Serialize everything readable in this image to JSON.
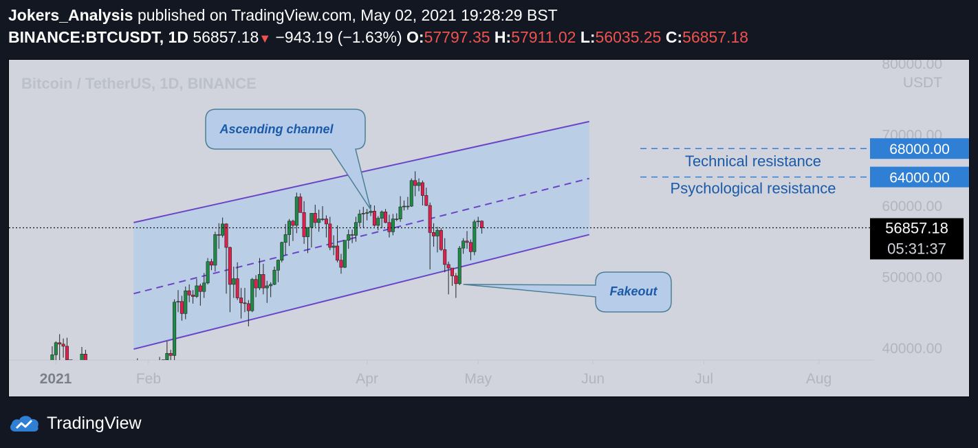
{
  "header": {
    "author": "Jokers_Analysis",
    "published": "published on TradingView.com, May 02, 2021 19:28:29 BST",
    "symbol": "BINANCE:BTCUSDT, 1D",
    "last": "56857.18",
    "change": "−943.19 (−1.63%)",
    "o_label": "O:",
    "o_value": "57797.35",
    "h_label": "H:",
    "h_value": "57911.02",
    "l_label": "L:",
    "l_value": "56035.25",
    "c_label": "C:",
    "c_value": "56857.18"
  },
  "footer": {
    "brand": "TradingView",
    "logo_icon": "tradingview-cloud-icon"
  },
  "colors": {
    "up": "#1e8a45",
    "down": "#e0204c",
    "channel_line": "#6a44c8",
    "channel_fill": "#b6cce8",
    "label_blue": "#1b5aa8",
    "price_tag": "#2f7fd4",
    "background": "#d1d4dc",
    "page": "#131722"
  },
  "chart_data": {
    "type": "candlestick",
    "watermark": "Bitcoin / TetherUS, 1D, BINANCE",
    "y_unit": "USDT",
    "y_ticks": [
      "80000.00",
      "70000.00",
      "60000.00",
      "50000.00",
      "40000.00"
    ],
    "y_range": [
      38000,
      80000
    ],
    "x_ticks": [
      "2021",
      "Feb",
      "Apr",
      "May",
      "Jun",
      "Jul",
      "Aug"
    ],
    "current_price": "56857.18",
    "countdown": "05:31:37",
    "resistance_levels": [
      {
        "price": 68000,
        "tag": "68000.00",
        "label": "Technical resistance"
      },
      {
        "price": 64000,
        "tag": "64000.00",
        "label": "Psychological resistance"
      }
    ],
    "channel": {
      "start_date": "2021-01-28",
      "end_date": "2021-05-31",
      "upper": [
        57600,
        71800
      ],
      "middle": [
        47600,
        63800
      ],
      "lower": [
        39800,
        55900
      ]
    },
    "annotations": [
      {
        "text": "Ascending channel",
        "anchor_date": "2021-04-02",
        "anchor_price": 59400
      },
      {
        "text": "Fakeout",
        "anchor_date": "2021-04-27",
        "anchor_price": 48900
      }
    ],
    "series": [
      {
        "date": "2021-01-06",
        "open": 34000,
        "high": 40200,
        "low": 33000,
        "close": 39000
      },
      {
        "date": "2021-01-07",
        "open": 39000,
        "high": 40900,
        "low": 36000,
        "close": 40700
      },
      {
        "date": "2021-01-08",
        "open": 40700,
        "high": 41900,
        "low": 36300,
        "close": 40500
      },
      {
        "date": "2021-01-09",
        "open": 40500,
        "high": 41300,
        "low": 38600,
        "close": 40200
      },
      {
        "date": "2021-01-10",
        "open": 40200,
        "high": 41400,
        "low": 35400,
        "close": 38300
      },
      {
        "date": "2021-01-11",
        "open": 38300,
        "high": 38300,
        "low": 30400,
        "close": 35500
      },
      {
        "date": "2021-01-12",
        "open": 35500,
        "high": 36600,
        "low": 32500,
        "close": 34000
      },
      {
        "date": "2021-01-13",
        "open": 34000,
        "high": 37600,
        "low": 32400,
        "close": 37400
      },
      {
        "date": "2021-01-14",
        "open": 37400,
        "high": 40100,
        "low": 36700,
        "close": 39100
      },
      {
        "date": "2021-01-15",
        "open": 39100,
        "high": 39700,
        "low": 34400,
        "close": 36800
      },
      {
        "date": "2021-01-16",
        "open": 36800,
        "high": 37900,
        "low": 35400,
        "close": 36000
      },
      {
        "date": "2021-01-17",
        "open": 36000,
        "high": 36800,
        "low": 33800,
        "close": 35800
      },
      {
        "date": "2021-01-18",
        "open": 35800,
        "high": 37300,
        "low": 34800,
        "close": 36600
      },
      {
        "date": "2021-01-19",
        "open": 36600,
        "high": 37800,
        "low": 35800,
        "close": 35900
      },
      {
        "date": "2021-01-20",
        "open": 35900,
        "high": 36400,
        "low": 33400,
        "close": 35500
      },
      {
        "date": "2021-01-21",
        "open": 35500,
        "high": 35500,
        "low": 30000,
        "close": 30800
      },
      {
        "date": "2021-01-22",
        "open": 30800,
        "high": 33800,
        "low": 28800,
        "close": 33000
      },
      {
        "date": "2021-01-23",
        "open": 33000,
        "high": 33400,
        "low": 31400,
        "close": 32100
      },
      {
        "date": "2021-01-24",
        "open": 32100,
        "high": 32900,
        "low": 30900,
        "close": 32300
      },
      {
        "date": "2021-01-25",
        "open": 32300,
        "high": 34900,
        "low": 31900,
        "close": 32300
      },
      {
        "date": "2021-01-26",
        "open": 32300,
        "high": 32900,
        "low": 30800,
        "close": 32500
      },
      {
        "date": "2021-01-27",
        "open": 32500,
        "high": 32600,
        "low": 29200,
        "close": 30400
      },
      {
        "date": "2021-01-28",
        "open": 30400,
        "high": 34000,
        "low": 29900,
        "close": 33400
      },
      {
        "date": "2021-01-29",
        "open": 33400,
        "high": 38500,
        "low": 31900,
        "close": 34300
      },
      {
        "date": "2021-01-30",
        "open": 34300,
        "high": 34900,
        "low": 32900,
        "close": 34300
      },
      {
        "date": "2021-01-31",
        "open": 34300,
        "high": 34400,
        "low": 32100,
        "close": 33100
      },
      {
        "date": "2021-02-01",
        "open": 33100,
        "high": 34700,
        "low": 32300,
        "close": 33500
      },
      {
        "date": "2021-02-02",
        "open": 33500,
        "high": 36000,
        "low": 33400,
        "close": 35500
      },
      {
        "date": "2021-02-03",
        "open": 35500,
        "high": 37700,
        "low": 35400,
        "close": 37600
      },
      {
        "date": "2021-02-04",
        "open": 37600,
        "high": 38700,
        "low": 36200,
        "close": 36900
      },
      {
        "date": "2021-02-05",
        "open": 36900,
        "high": 38300,
        "low": 36600,
        "close": 38300
      },
      {
        "date": "2021-02-06",
        "open": 38300,
        "high": 40900,
        "low": 38200,
        "close": 39200
      },
      {
        "date": "2021-02-07",
        "open": 39200,
        "high": 39700,
        "low": 37400,
        "close": 38900
      },
      {
        "date": "2021-02-08",
        "open": 38900,
        "high": 46800,
        "low": 38000,
        "close": 46400
      },
      {
        "date": "2021-02-09",
        "open": 46400,
        "high": 48100,
        "low": 45000,
        "close": 46500
      },
      {
        "date": "2021-02-10",
        "open": 46500,
        "high": 47300,
        "low": 43800,
        "close": 44800
      },
      {
        "date": "2021-02-11",
        "open": 44800,
        "high": 48600,
        "low": 44000,
        "close": 48000
      },
      {
        "date": "2021-02-12",
        "open": 48000,
        "high": 48900,
        "low": 46400,
        "close": 47400
      },
      {
        "date": "2021-02-13",
        "open": 47400,
        "high": 48100,
        "low": 46200,
        "close": 47200
      },
      {
        "date": "2021-02-14",
        "open": 47200,
        "high": 49700,
        "low": 47000,
        "close": 48700
      },
      {
        "date": "2021-02-15",
        "open": 48700,
        "high": 49000,
        "low": 45900,
        "close": 47900
      },
      {
        "date": "2021-02-16",
        "open": 47900,
        "high": 50500,
        "low": 47000,
        "close": 49100
      },
      {
        "date": "2021-02-17",
        "open": 49100,
        "high": 52600,
        "low": 48900,
        "close": 52100
      },
      {
        "date": "2021-02-18",
        "open": 52100,
        "high": 52500,
        "low": 50900,
        "close": 51600
      },
      {
        "date": "2021-02-19",
        "open": 51600,
        "high": 56300,
        "low": 50700,
        "close": 55900
      },
      {
        "date": "2021-02-20",
        "open": 55900,
        "high": 57500,
        "low": 53900,
        "close": 55800
      },
      {
        "date": "2021-02-21",
        "open": 55800,
        "high": 58300,
        "low": 55500,
        "close": 57400
      },
      {
        "date": "2021-02-22",
        "open": 57400,
        "high": 57500,
        "low": 47600,
        "close": 54100
      },
      {
        "date": "2021-02-23",
        "open": 54100,
        "high": 54200,
        "low": 45000,
        "close": 48900
      },
      {
        "date": "2021-02-24",
        "open": 48900,
        "high": 51400,
        "low": 47000,
        "close": 49700
      },
      {
        "date": "2021-02-25",
        "open": 49700,
        "high": 52000,
        "low": 46700,
        "close": 47000
      },
      {
        "date": "2021-02-26",
        "open": 47000,
        "high": 48400,
        "low": 44100,
        "close": 46300
      },
      {
        "date": "2021-02-27",
        "open": 46300,
        "high": 48400,
        "low": 45000,
        "close": 46200
      },
      {
        "date": "2021-02-28",
        "open": 46200,
        "high": 46700,
        "low": 43000,
        "close": 45200
      },
      {
        "date": "2021-03-01",
        "open": 45200,
        "high": 49800,
        "low": 45000,
        "close": 49600
      },
      {
        "date": "2021-03-02",
        "open": 49600,
        "high": 50200,
        "low": 47100,
        "close": 48400
      },
      {
        "date": "2021-03-03",
        "open": 48400,
        "high": 52600,
        "low": 48100,
        "close": 50300
      },
      {
        "date": "2021-03-04",
        "open": 50300,
        "high": 51800,
        "low": 47500,
        "close": 48400
      },
      {
        "date": "2021-03-05",
        "open": 48400,
        "high": 49400,
        "low": 46300,
        "close": 48700
      },
      {
        "date": "2021-03-06",
        "open": 48700,
        "high": 49200,
        "low": 47100,
        "close": 48900
      },
      {
        "date": "2021-03-07",
        "open": 48900,
        "high": 51400,
        "low": 48800,
        "close": 50900
      },
      {
        "date": "2021-03-08",
        "open": 50900,
        "high": 52400,
        "low": 49200,
        "close": 52300
      },
      {
        "date": "2021-03-09",
        "open": 52300,
        "high": 54900,
        "low": 52000,
        "close": 54800
      },
      {
        "date": "2021-03-10",
        "open": 54800,
        "high": 57400,
        "low": 53000,
        "close": 55900
      },
      {
        "date": "2021-03-11",
        "open": 55900,
        "high": 58100,
        "low": 54300,
        "close": 57800
      },
      {
        "date": "2021-03-12",
        "open": 57800,
        "high": 58000,
        "low": 55000,
        "close": 57200
      },
      {
        "date": "2021-03-13",
        "open": 57200,
        "high": 61800,
        "low": 56100,
        "close": 61200
      },
      {
        "date": "2021-03-14",
        "open": 61200,
        "high": 61700,
        "low": 59100,
        "close": 59000
      },
      {
        "date": "2021-03-15",
        "open": 59000,
        "high": 60600,
        "low": 54600,
        "close": 55600
      },
      {
        "date": "2021-03-16",
        "open": 55600,
        "high": 56900,
        "low": 53300,
        "close": 56900
      },
      {
        "date": "2021-03-17",
        "open": 56900,
        "high": 58900,
        "low": 54100,
        "close": 58900
      },
      {
        "date": "2021-03-18",
        "open": 58900,
        "high": 60100,
        "low": 57000,
        "close": 57600
      },
      {
        "date": "2021-03-19",
        "open": 57600,
        "high": 59400,
        "low": 56300,
        "close": 58100
      },
      {
        "date": "2021-03-20",
        "open": 58100,
        "high": 59900,
        "low": 57800,
        "close": 58100
      },
      {
        "date": "2021-03-21",
        "open": 58100,
        "high": 58600,
        "low": 55500,
        "close": 57400
      },
      {
        "date": "2021-03-22",
        "open": 57400,
        "high": 58400,
        "low": 53700,
        "close": 54100
      },
      {
        "date": "2021-03-23",
        "open": 54100,
        "high": 55800,
        "low": 53000,
        "close": 54300
      },
      {
        "date": "2021-03-24",
        "open": 54300,
        "high": 57200,
        "low": 52000,
        "close": 52300
      },
      {
        "date": "2021-03-25",
        "open": 52300,
        "high": 53200,
        "low": 50400,
        "close": 51300
      },
      {
        "date": "2021-03-26",
        "open": 51300,
        "high": 55100,
        "low": 51200,
        "close": 55100
      },
      {
        "date": "2021-03-27",
        "open": 55100,
        "high": 56600,
        "low": 53900,
        "close": 55900
      },
      {
        "date": "2021-03-28",
        "open": 55900,
        "high": 56600,
        "low": 54700,
        "close": 55800
      },
      {
        "date": "2021-03-29",
        "open": 55800,
        "high": 58400,
        "low": 54900,
        "close": 57600
      },
      {
        "date": "2021-03-30",
        "open": 57600,
        "high": 59400,
        "low": 57000,
        "close": 58800
      },
      {
        "date": "2021-03-31",
        "open": 58800,
        "high": 59800,
        "low": 56900,
        "close": 58900
      },
      {
        "date": "2021-04-01",
        "open": 58900,
        "high": 59500,
        "low": 57900,
        "close": 59000
      },
      {
        "date": "2021-04-02",
        "open": 59000,
        "high": 60100,
        "low": 58500,
        "close": 59200
      },
      {
        "date": "2021-04-03",
        "open": 59200,
        "high": 60000,
        "low": 57000,
        "close": 57200
      },
      {
        "date": "2021-04-04",
        "open": 57200,
        "high": 58500,
        "low": 56500,
        "close": 58200
      },
      {
        "date": "2021-04-05",
        "open": 58200,
        "high": 59300,
        "low": 56800,
        "close": 59100
      },
      {
        "date": "2021-04-06",
        "open": 59100,
        "high": 59500,
        "low": 57500,
        "close": 57600
      },
      {
        "date": "2021-04-07",
        "open": 57600,
        "high": 58700,
        "low": 55500,
        "close": 56300
      },
      {
        "date": "2021-04-08",
        "open": 56300,
        "high": 58800,
        "low": 55800,
        "close": 58100
      },
      {
        "date": "2021-04-09",
        "open": 58100,
        "high": 58900,
        "low": 57800,
        "close": 58100
      },
      {
        "date": "2021-04-10",
        "open": 58100,
        "high": 61300,
        "low": 57700,
        "close": 59800
      },
      {
        "date": "2021-04-11",
        "open": 59800,
        "high": 60700,
        "low": 59300,
        "close": 59900
      },
      {
        "date": "2021-04-12",
        "open": 59900,
        "high": 61200,
        "low": 59400,
        "close": 59900
      },
      {
        "date": "2021-04-13",
        "open": 59900,
        "high": 63800,
        "low": 59800,
        "close": 63500
      },
      {
        "date": "2021-04-14",
        "open": 63500,
        "high": 64800,
        "low": 61300,
        "close": 62800
      },
      {
        "date": "2021-04-15",
        "open": 62800,
        "high": 63800,
        "low": 62000,
        "close": 63200
      },
      {
        "date": "2021-04-16",
        "open": 63200,
        "high": 63500,
        "low": 60000,
        "close": 61400
      },
      {
        "date": "2021-04-17",
        "open": 61400,
        "high": 62500,
        "low": 59900,
        "close": 60000
      },
      {
        "date": "2021-04-18",
        "open": 60000,
        "high": 60400,
        "low": 51000,
        "close": 56200
      },
      {
        "date": "2021-04-19",
        "open": 56200,
        "high": 57500,
        "low": 54200,
        "close": 55700
      },
      {
        "date": "2021-04-20",
        "open": 55700,
        "high": 57000,
        "low": 53400,
        "close": 56500
      },
      {
        "date": "2021-04-21",
        "open": 56500,
        "high": 56800,
        "low": 53600,
        "close": 53800
      },
      {
        "date": "2021-04-22",
        "open": 53800,
        "high": 55400,
        "low": 50600,
        "close": 51700
      },
      {
        "date": "2021-04-23",
        "open": 51700,
        "high": 52100,
        "low": 47500,
        "close": 51200
      },
      {
        "date": "2021-04-24",
        "open": 51200,
        "high": 51200,
        "low": 48700,
        "close": 50100
      },
      {
        "date": "2021-04-25",
        "open": 50100,
        "high": 50500,
        "low": 47000,
        "close": 49000
      },
      {
        "date": "2021-04-26",
        "open": 49000,
        "high": 54300,
        "low": 48800,
        "close": 54000
      },
      {
        "date": "2021-04-27",
        "open": 54000,
        "high": 55400,
        "low": 53200,
        "close": 55000
      },
      {
        "date": "2021-04-28",
        "open": 55000,
        "high": 56400,
        "low": 53900,
        "close": 54800
      },
      {
        "date": "2021-04-29",
        "open": 54800,
        "high": 55200,
        "low": 52300,
        "close": 53500
      },
      {
        "date": "2021-04-30",
        "open": 53500,
        "high": 58000,
        "low": 53000,
        "close": 57700
      },
      {
        "date": "2021-05-01",
        "open": 57700,
        "high": 58400,
        "low": 57000,
        "close": 57800
      },
      {
        "date": "2021-05-02",
        "open": 57797.35,
        "high": 57911.02,
        "low": 56035.25,
        "close": 56857.18
      }
    ]
  }
}
